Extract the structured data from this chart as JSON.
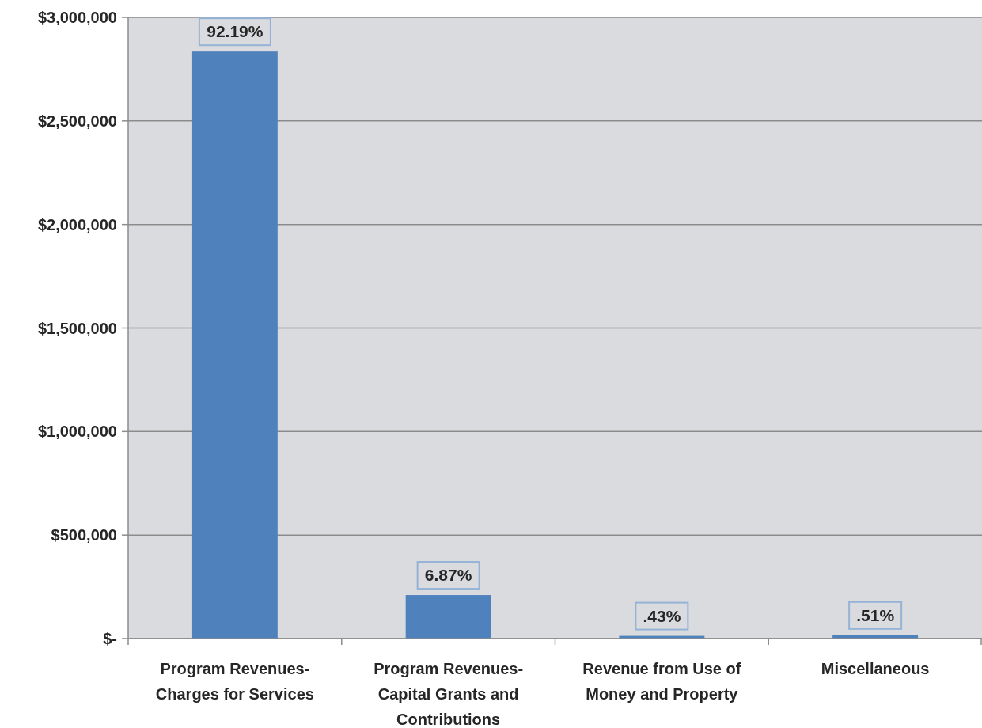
{
  "chart_data": {
    "type": "bar",
    "categories": [
      "Program Revenues-Charges for Services",
      "Program Revenues-Capital Grants and Contributions",
      "Revenue from Use of Money and Property",
      "Miscellaneous"
    ],
    "values": [
      2835000,
      210000,
      13000,
      16000
    ],
    "annotations": [
      {
        "text": "92.19%",
        "x": "Program Revenues-Charges for Services",
        "y": 2835000
      },
      {
        "text": "6.87%",
        "x": "Program Revenues-Capital Grants and Contributions",
        "y": 210000
      },
      {
        "text": ".43%",
        "x": "Revenue from Use of Money and Property",
        "y": 13000
      },
      {
        "text": ".51%",
        "x": "Miscellaneous",
        "y": 16000
      }
    ],
    "color": "#4f81bd",
    "ylim": [
      0,
      3000000
    ],
    "yticks": [
      {
        "value": 0,
        "label": "$-"
      },
      {
        "value": 500000,
        "label": "$500,000"
      },
      {
        "value": 1000000,
        "label": "$1,000,000"
      },
      {
        "value": 1500000,
        "label": "$1,500,000"
      },
      {
        "value": 2000000,
        "label": "$2,000,000"
      },
      {
        "value": 2500000,
        "label": "$2,500,000"
      },
      {
        "value": 3000000,
        "label": "$3,000,000"
      }
    ],
    "grid": "y"
  }
}
